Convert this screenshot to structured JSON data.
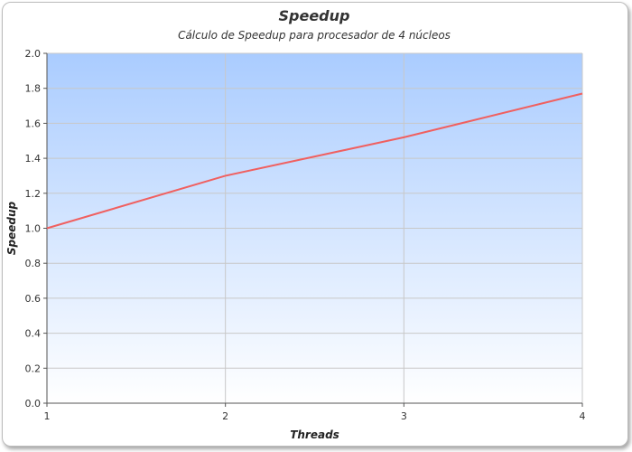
{
  "chart_data": {
    "type": "line",
    "title": "Speedup",
    "subtitle": "Cálculo de Speedup para procesador de 4 núcleos",
    "xlabel": "Threads",
    "ylabel": "Speedup",
    "x": [
      1,
      2,
      3,
      4
    ],
    "x_tick_labels": [
      "1",
      "2",
      "3",
      "4"
    ],
    "y_tick_values": [
      0.0,
      0.2,
      0.4,
      0.6,
      0.8,
      1.0,
      1.2,
      1.4,
      1.6,
      1.8,
      2.0
    ],
    "y_tick_labels": [
      "0.0",
      "0.2",
      "0.4",
      "0.6",
      "0.8",
      "1.0",
      "1.2",
      "1.4",
      "1.6",
      "1.8",
      "2.0"
    ],
    "xlim": [
      1,
      4
    ],
    "ylim": [
      0,
      2.0
    ],
    "grid": true,
    "series": [
      {
        "values": [
          1.0,
          1.3,
          1.52,
          1.77
        ],
        "color": "#f06060"
      }
    ],
    "background_gradient": [
      "#aaccff",
      "#ffffff"
    ]
  }
}
